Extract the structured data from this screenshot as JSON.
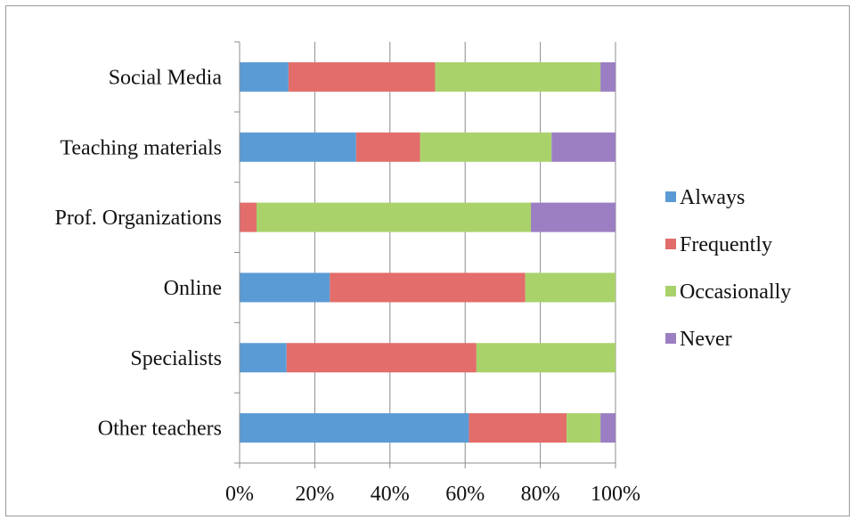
{
  "chart_data": {
    "type": "bar",
    "orientation": "horizontal",
    "stacked": true,
    "normalized": true,
    "categories": [
      "Social Media",
      "Teaching materials",
      "Prof. Organizations",
      "Online",
      "Specialists",
      "Other teachers"
    ],
    "series": [
      {
        "name": "Always",
        "color": "#5b9bd5",
        "values": [
          13,
          31,
          0,
          24,
          12.5,
          61
        ]
      },
      {
        "name": "Frequently",
        "color": "#e26d6b",
        "values": [
          39,
          17,
          4.5,
          52,
          50.5,
          26
        ]
      },
      {
        "name": "Occasionally",
        "color": "#a9d26b",
        "values": [
          44,
          35,
          73,
          24,
          37,
          9
        ]
      },
      {
        "name": "Never",
        "color": "#9b7fc2",
        "values": [
          4,
          17,
          22.5,
          0,
          0,
          4
        ]
      }
    ],
    "x_tick_labels": [
      "0%",
      "20%",
      "40%",
      "60%",
      "80%",
      "100%"
    ],
    "xlim": [
      0,
      100
    ],
    "grid": true,
    "legend_position": "right"
  }
}
